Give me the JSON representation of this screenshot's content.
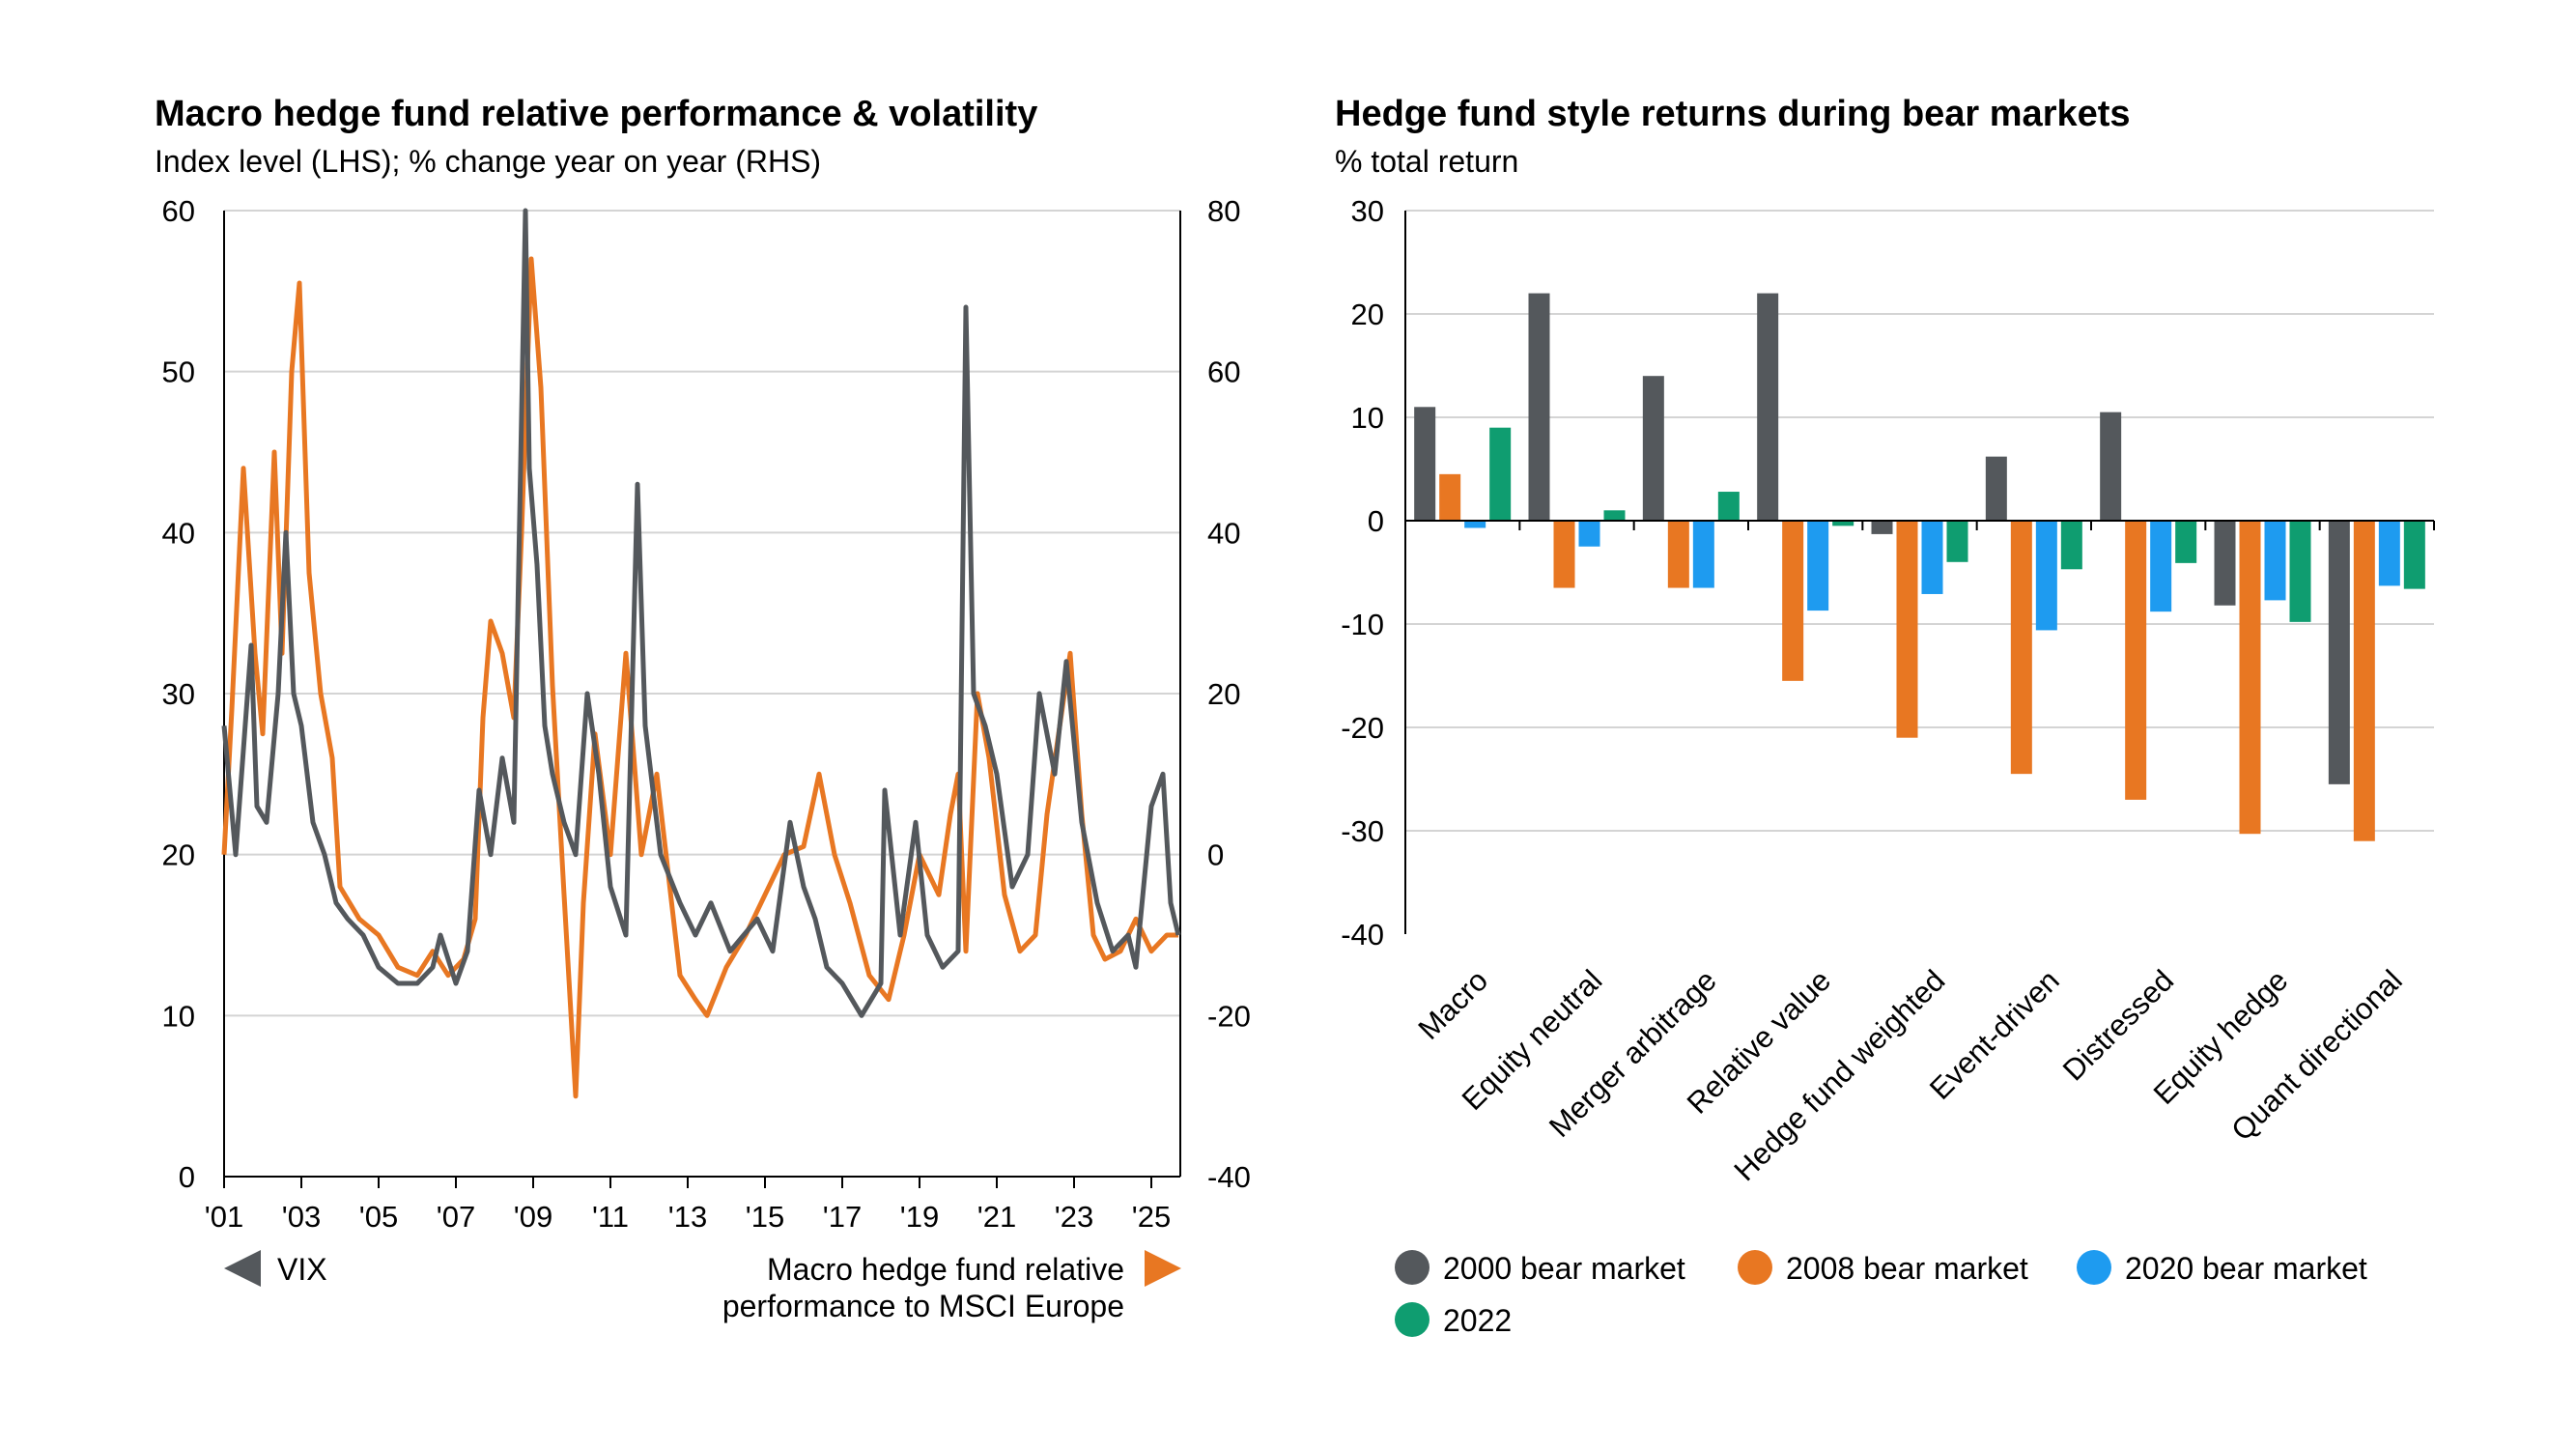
{
  "charts": {
    "left": {
      "title": "Macro hedge fund relative performance & volatility",
      "subtitle": "Index level (LHS); % change year on year (RHS)",
      "legend": {
        "vix": "VIX",
        "macro_line1": "Macro hedge fund relative",
        "macro_line2": "performance to MSCI Europe"
      }
    },
    "right": {
      "title": "Hedge fund style returns during bear markets",
      "subtitle": "% total return"
    }
  },
  "chart_data": [
    {
      "type": "line",
      "title": "Macro hedge fund relative performance & volatility",
      "subtitle": "Index level (LHS); % change year on year (RHS)",
      "x_range": [
        2001,
        2025.75
      ],
      "x_ticks": [
        2001,
        2003,
        2005,
        2007,
        2009,
        2011,
        2013,
        2015,
        2017,
        2019,
        2021,
        2023,
        2025
      ],
      "x_tick_labels": [
        "'01",
        "'03",
        "'05",
        "'07",
        "'09",
        "'11",
        "'13",
        "'15",
        "'17",
        "'19",
        "'21",
        "'23",
        "'25"
      ],
      "y_left": {
        "range": [
          0,
          60
        ],
        "ticks": [
          0,
          10,
          20,
          30,
          40,
          50,
          60
        ]
      },
      "y_right": {
        "range": [
          -40,
          80
        ],
        "ticks": [
          -40,
          -20,
          0,
          20,
          40,
          60,
          80
        ]
      },
      "series": [
        {
          "name": "VIX",
          "axis": "left",
          "color": "#54585c",
          "x": [
            2001.0,
            2001.3,
            2001.7,
            2001.85,
            2002.1,
            2002.4,
            2002.6,
            2002.8,
            2003.0,
            2003.3,
            2003.6,
            2003.9,
            2004.2,
            2004.6,
            2005.0,
            2005.5,
            2006.0,
            2006.4,
            2006.6,
            2007.0,
            2007.3,
            2007.6,
            2007.9,
            2008.2,
            2008.5,
            2008.8,
            2008.9,
            2009.1,
            2009.3,
            2009.5,
            2009.8,
            2010.1,
            2010.4,
            2010.7,
            2011.0,
            2011.4,
            2011.7,
            2011.9,
            2012.3,
            2012.8,
            2013.2,
            2013.6,
            2014.1,
            2014.8,
            2015.2,
            2015.65,
            2016.0,
            2016.3,
            2016.6,
            2017.0,
            2017.5,
            2018.0,
            2018.1,
            2018.5,
            2018.9,
            2019.2,
            2019.6,
            2020.0,
            2020.2,
            2020.4,
            2020.7,
            2021.0,
            2021.4,
            2021.8,
            2022.1,
            2022.5,
            2022.8,
            2023.2,
            2023.6,
            2024.0,
            2024.4,
            2024.6,
            2025.0,
            2025.3,
            2025.5,
            2025.7
          ],
          "y": [
            28,
            20,
            33,
            23,
            22,
            30,
            40,
            30,
            28,
            22,
            20,
            17,
            16,
            15,
            13,
            12,
            12,
            13,
            15,
            12,
            14,
            24,
            20,
            26,
            22,
            60,
            44,
            38,
            28,
            25,
            22,
            20,
            30,
            25,
            18,
            15,
            43,
            28,
            20,
            17,
            15,
            17,
            14,
            16,
            14,
            22,
            18,
            16,
            13,
            12,
            10,
            12,
            24,
            15,
            22,
            15,
            13,
            14,
            54,
            30,
            28,
            25,
            18,
            20,
            30,
            25,
            32,
            22,
            17,
            14,
            15,
            13,
            23,
            25,
            17,
            15
          ]
        },
        {
          "name": "Macro hedge fund relative performance to MSCI Europe",
          "axis": "right",
          "color": "#e87722",
          "x": [
            2001.0,
            2001.2,
            2001.5,
            2001.8,
            2002.0,
            2002.3,
            2002.5,
            2002.75,
            2002.95,
            2003.2,
            2003.5,
            2003.8,
            2004.0,
            2004.5,
            2005.0,
            2005.5,
            2006.0,
            2006.4,
            2006.8,
            2007.2,
            2007.5,
            2007.7,
            2007.9,
            2008.2,
            2008.5,
            2008.7,
            2008.95,
            2009.2,
            2009.5,
            2009.8,
            2010.1,
            2010.3,
            2010.6,
            2011.0,
            2011.4,
            2011.8,
            2012.2,
            2012.8,
            2013.2,
            2013.5,
            2014.0,
            2014.5,
            2015.0,
            2015.5,
            2016.0,
            2016.4,
            2016.8,
            2017.2,
            2017.7,
            2018.2,
            2018.6,
            2019.0,
            2019.5,
            2019.8,
            2020.0,
            2020.2,
            2020.5,
            2020.8,
            2021.2,
            2021.6,
            2022.0,
            2022.3,
            2022.6,
            2022.9,
            2023.2,
            2023.5,
            2023.8,
            2024.2,
            2024.6,
            2025.0,
            2025.4,
            2025.7
          ],
          "y": [
            0,
            18,
            48,
            25,
            15,
            50,
            25,
            60,
            71,
            35,
            20,
            12,
            -4,
            -8,
            -10,
            -14,
            -15,
            -12,
            -15,
            -13,
            -8,
            17,
            29,
            25,
            17,
            40,
            74,
            58,
            21,
            -5,
            -30,
            -6,
            15,
            0,
            25,
            0,
            10,
            -15,
            -18,
            -20,
            -14,
            -10,
            -5,
            0,
            1,
            10,
            0,
            -6,
            -15,
            -18,
            -10,
            0,
            -5,
            5,
            10,
            -12,
            20,
            12,
            -5,
            -12,
            -10,
            5,
            15,
            25,
            5,
            -10,
            -13,
            -12,
            -8,
            -12,
            -10,
            -10
          ]
        }
      ]
    },
    {
      "type": "bar",
      "title": "Hedge fund style returns during bear markets",
      "subtitle": "% total return",
      "categories": [
        "Macro",
        "Equity neutral",
        "Merger arbitrage",
        "Relative value",
        "Hedge fund weighted",
        "Event-driven",
        "Distressed",
        "Equity hedge",
        "Quant directional"
      ],
      "ylim": [
        -40,
        30
      ],
      "y_ticks": [
        -40,
        -30,
        -20,
        -10,
        0,
        10,
        20,
        30
      ],
      "series": [
        {
          "name": "2000 bear market",
          "color": "#54585c",
          "values": [
            11,
            22,
            14,
            22,
            -1.3,
            6.2,
            10.5,
            -8.2,
            -25.5
          ]
        },
        {
          "name": "2008 bear market",
          "color": "#e87722",
          "values": [
            4.5,
            -6.5,
            -6.5,
            -15.5,
            -21,
            -24.5,
            -27,
            -30.3,
            -31
          ]
        },
        {
          "name": "2020 bear market",
          "color": "#1e9bf0",
          "values": [
            -0.7,
            -2.5,
            -6.5,
            -8.7,
            -7.1,
            -10.6,
            -8.8,
            -7.7,
            -6.3
          ]
        },
        {
          "name": "2022",
          "color": "#0f9d70",
          "values": [
            9,
            1,
            2.8,
            -0.5,
            -4,
            -4.7,
            -4.1,
            -9.8,
            -6.6
          ]
        }
      ]
    }
  ]
}
